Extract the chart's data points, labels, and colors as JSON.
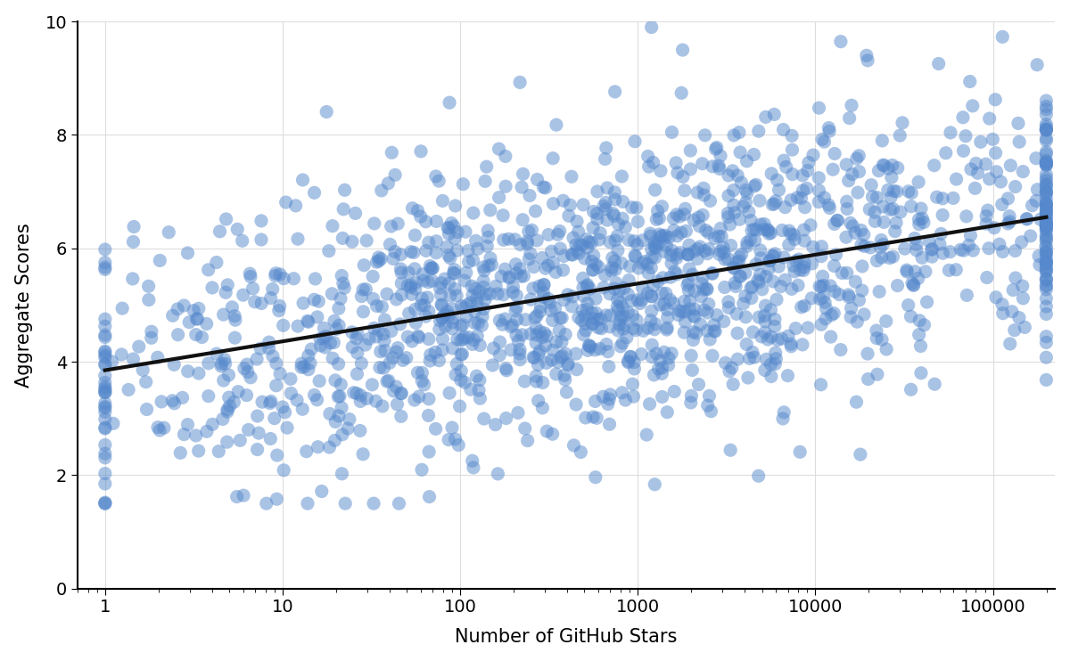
{
  "title": "",
  "xlabel": "Number of GitHub Stars",
  "ylabel": "Aggregate Scores",
  "ylim": [
    0,
    10
  ],
  "yticks": [
    0,
    2,
    4,
    6,
    8,
    10
  ],
  "xticks_log": [
    1,
    10,
    100,
    1000,
    10000,
    100000
  ],
  "scatter_color": "#5588cc",
  "scatter_alpha": 0.5,
  "scatter_size": 120,
  "line_color": "#111111",
  "line_width": 3.0,
  "line_start_y": 3.85,
  "line_end_y": 6.55,
  "background_color": "#ffffff",
  "grid_color": "#dddddd",
  "seed": 42,
  "n_points": 1500,
  "font_size_labels": 15,
  "font_size_ticks": 14
}
